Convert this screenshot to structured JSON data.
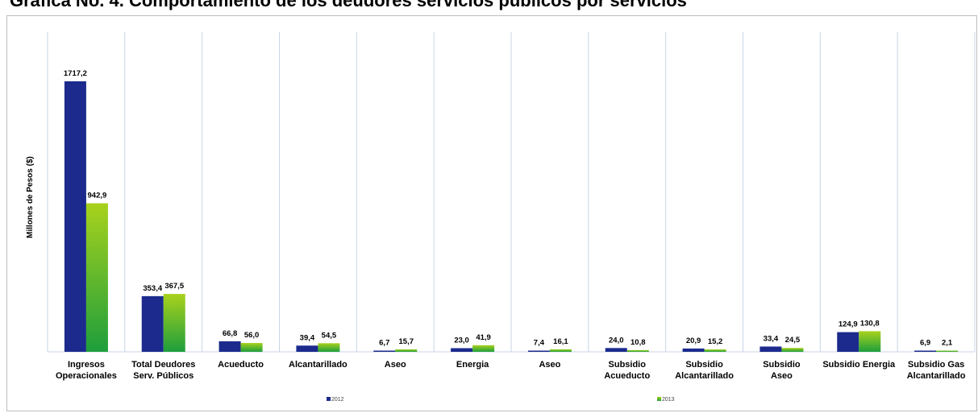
{
  "page": {
    "title": "Gráfica No. 4. Comportamiento de los deudores servicios públicos por servicios"
  },
  "colors": {
    "series_2012": "#1b2a8c",
    "series_2013_top": "#a8d21c",
    "series_2013_bottom": "#1e9e3c",
    "gridline": "#c9d3e6"
  },
  "chart_data": {
    "type": "bar",
    "ylabel": "Millones de Pesos ($)",
    "xlabel": "",
    "ylim": [
      0,
      1750
    ],
    "grid": "vertical category separators",
    "legend_position": "bottom",
    "categories": [
      [
        "Ingresos",
        "Operacionales"
      ],
      [
        "Total Deudores",
        "Serv. Públicos"
      ],
      [
        "Acueducto"
      ],
      [
        "Alcantarillado"
      ],
      [
        "Aseo"
      ],
      [
        "Energia"
      ],
      [
        "Aseo"
      ],
      [
        "Subsidio",
        "Acueducto"
      ],
      [
        "Subsidio",
        "Alcantarillado"
      ],
      [
        "Subsidio",
        "Aseo"
      ],
      [
        "Subsidio Energia"
      ],
      [
        "Subsidio Gas",
        "Alcantarillado"
      ]
    ],
    "series": [
      {
        "name": "2012",
        "values": [
          1717.2,
          353.4,
          66.8,
          39.4,
          6.7,
          23.0,
          7.4,
          24.0,
          20.9,
          33.4,
          124.9,
          6.9
        ],
        "labels": [
          "1717,2",
          "353,4",
          "66,8",
          "39,4",
          "6,7",
          "23,0",
          "7,4",
          "24,0",
          "20,9",
          "33,4",
          "124,9",
          "6,9"
        ]
      },
      {
        "name": "2013",
        "values": [
          942.9,
          367.5,
          56.0,
          54.5,
          15.7,
          41.9,
          16.1,
          10.8,
          15.2,
          24.5,
          130.8,
          2.1
        ],
        "labels": [
          "942,9",
          "367,5",
          "56,0",
          "54,5",
          "15,7",
          "41,9",
          "16,1",
          "10,8",
          "15,2",
          "24,5",
          "130,8",
          "2,1"
        ]
      }
    ]
  }
}
